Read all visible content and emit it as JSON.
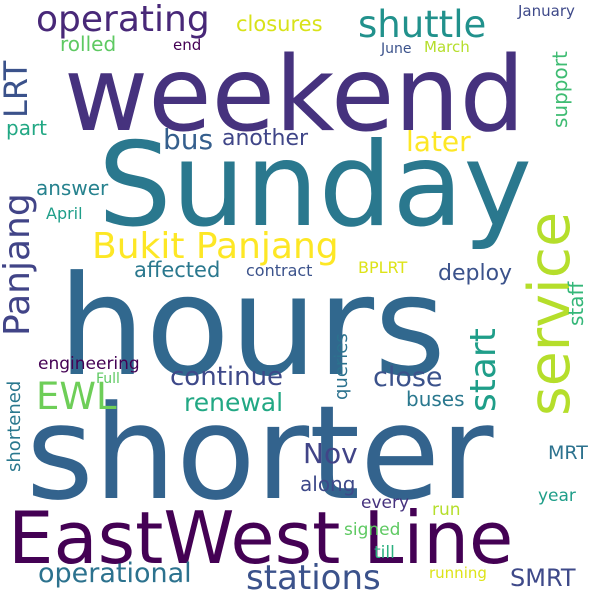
{
  "words": {
    "weekend": {
      "text": "weekend",
      "color": "#46327e"
    },
    "sunday": {
      "text": "Sunday",
      "color": "#2a788e"
    },
    "hours": {
      "text": "hours",
      "color": "#31688e"
    },
    "shorter": {
      "text": "shorter",
      "color": "#33638d"
    },
    "east_west_line": {
      "text": "EastWest Line",
      "color": "#440154"
    },
    "service": {
      "text": "service",
      "color": "#b5de2b"
    },
    "bukit_panjang": {
      "text": "Bukit Panjang",
      "color": "#fde725"
    },
    "operating": {
      "text": "operating",
      "color": "#482878"
    },
    "shuttle": {
      "text": "shuttle",
      "color": "#21918c"
    },
    "lrt": {
      "text": "LRT",
      "color": "#3b528b"
    },
    "panjang": {
      "text": "Panjang",
      "color": "#414487"
    },
    "stations": {
      "text": "stations",
      "color": "#3b528b"
    },
    "operational": {
      "text": "operational",
      "color": "#2c728e"
    },
    "start": {
      "text": "start",
      "color": "#1f9e89"
    },
    "continue": {
      "text": "continue",
      "color": "#3e4989"
    },
    "close": {
      "text": "close",
      "color": "#3b528b"
    },
    "ewl": {
      "text": "EWL",
      "color": "#6ece58"
    },
    "renewal": {
      "text": "renewal",
      "color": "#22a884"
    },
    "nov": {
      "text": "Nov",
      "color": "#414487"
    },
    "smrt": {
      "text": "SMRT",
      "color": "#3e4989"
    },
    "later": {
      "text": "later",
      "color": "#fde725"
    },
    "bus": {
      "text": "bus",
      "color": "#355f8d"
    },
    "another": {
      "text": "another",
      "color": "#404688"
    },
    "closures": {
      "text": "closures",
      "color": "#d8e219"
    },
    "rolled": {
      "text": "rolled",
      "color": "#5ec962"
    },
    "part": {
      "text": "part",
      "color": "#22a884"
    },
    "answer": {
      "text": "answer",
      "color": "#26828e"
    },
    "april": {
      "text": "April",
      "color": "#1f9e89"
    },
    "affected": {
      "text": "affected",
      "color": "#2a788e"
    },
    "contract": {
      "text": "contract",
      "color": "#3b528b"
    },
    "bplrt": {
      "text": "BPLRT",
      "color": "#dde318"
    },
    "deploy": {
      "text": "deploy",
      "color": "#3b528b"
    },
    "staff": {
      "text": "staff",
      "color": "#35b779"
    },
    "support": {
      "text": "support",
      "color": "#3fbc73"
    },
    "queries": {
      "text": "queries",
      "color": "#2c728e"
    },
    "buses": {
      "text": "buses",
      "color": "#2a788e"
    },
    "engineering": {
      "text": "engineering",
      "color": "#440154"
    },
    "full": {
      "text": "Full",
      "color": "#5ec962"
    },
    "shortened": {
      "text": "shortened",
      "color": "#2a788e"
    },
    "mrt": {
      "text": "MRT",
      "color": "#2c728e"
    },
    "along": {
      "text": "along",
      "color": "#3e4989"
    },
    "year": {
      "text": "year",
      "color": "#1f9e89"
    },
    "every": {
      "text": "every",
      "color": "#46327e"
    },
    "run": {
      "text": "run",
      "color": "#b5de2b"
    },
    "signed": {
      "text": "signed",
      "color": "#5ec962"
    },
    "till": {
      "text": "till",
      "color": "#2ab07f"
    },
    "running": {
      "text": "running",
      "color": "#dde318"
    },
    "january": {
      "text": "January",
      "color": "#3e4989"
    },
    "march": {
      "text": "March",
      "color": "#b5de2b"
    },
    "june": {
      "text": "June",
      "color": "#3b528b"
    },
    "end": {
      "text": "end",
      "color": "#440154"
    }
  }
}
